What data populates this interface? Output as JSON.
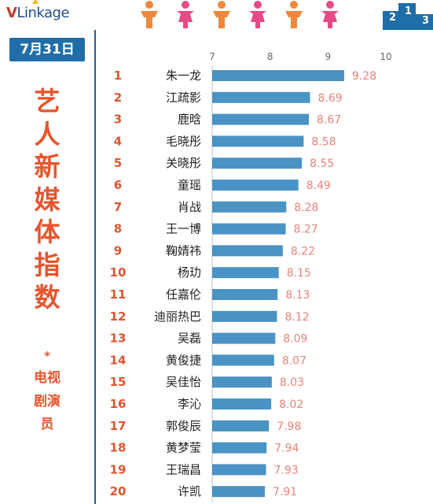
{
  "header": {
    "logo_v": "V",
    "logo_rest": "Linkage"
  },
  "sidebar": {
    "date": "7月31日",
    "title": "艺人新媒体指数",
    "star": "*",
    "subtitle": "电视剧演员"
  },
  "colors": {
    "bar": "#4a93c4",
    "value": "#e98379",
    "rank": "#e0552d",
    "accent": "#1f6ea8",
    "male_figure": "#f0883c",
    "female_figure": "#e64a87"
  },
  "chart_data": {
    "type": "bar",
    "orientation": "horizontal",
    "xlim": [
      7,
      10
    ],
    "xticks": [
      "7",
      "8",
      "9",
      "10"
    ],
    "ranks": [
      "1",
      "2",
      "3",
      "4",
      "5",
      "6",
      "7",
      "8",
      "9",
      "10",
      "11",
      "12",
      "13",
      "14",
      "15",
      "16",
      "17",
      "18",
      "19",
      "20"
    ],
    "categories": [
      "朱一龙",
      "江疏影",
      "鹿晗",
      "毛晓彤",
      "关晓彤",
      "童瑶",
      "肖战",
      "王一博",
      "鞠婧祎",
      "杨玏",
      "任嘉伦",
      "迪丽热巴",
      "吴磊",
      "黄俊捷",
      "吴佳怡",
      "李沁",
      "郭俊辰",
      "黄梦莹",
      "王瑞昌",
      "许凯"
    ],
    "values": [
      9.28,
      8.69,
      8.67,
      8.58,
      8.55,
      8.49,
      8.28,
      8.27,
      8.22,
      8.15,
      8.13,
      8.12,
      8.09,
      8.07,
      8.03,
      8.02,
      7.98,
      7.94,
      7.93,
      7.91
    ],
    "value_labels": [
      "9.28",
      "8.69",
      "8.67",
      "8.58",
      "8.55",
      "8.49",
      "8.28",
      "8.27",
      "8.22",
      "8.15",
      "8.13",
      "8.12",
      "8.09",
      "8.07",
      "8.03",
      "8.02",
      "7.98",
      "7.94",
      "7.93",
      "7.91"
    ],
    "grid": false
  }
}
